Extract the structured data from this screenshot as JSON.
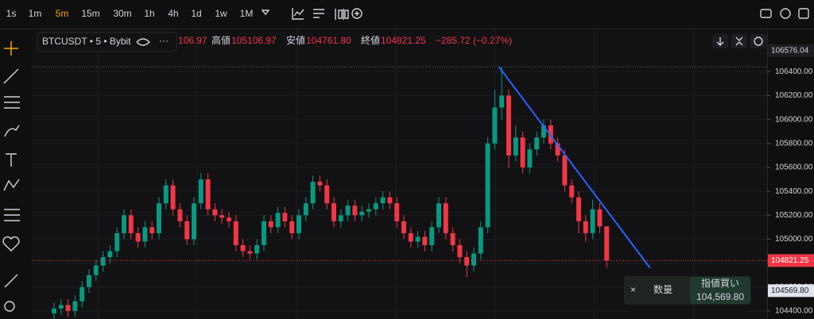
{
  "toolbar": {
    "intervals": [
      "1s",
      "1m",
      "5m",
      "15m",
      "30m",
      "1h",
      "4h",
      "1d",
      "1w",
      "1M"
    ],
    "active": 2
  },
  "legend": {
    "symbol": "BTCUSDT • 5 • Bybit",
    "open_partial": "106.97",
    "items": [
      {
        "label": "高値",
        "value": "105106.97"
      },
      {
        "label": "安値",
        "value": "104761.80"
      },
      {
        "label": "終値",
        "value": "104821.25"
      }
    ],
    "change": "−285.72 (−0.27%)"
  },
  "order_panel": {
    "close": "×",
    "quantity": "数量",
    "action": "指値買い",
    "price": "104,569.80"
  },
  "chart_data": {
    "type": "candlestick",
    "up_color": "#089981",
    "down_color": "#f23645",
    "grid": true,
    "open": [
      104380,
      104420,
      104450,
      104400,
      104480,
      104600,
      104700,
      104780,
      104850,
      104900,
      105050,
      105200,
      105050,
      104980,
      105100,
      105050,
      105300,
      105450,
      105250,
      105150,
      105000,
      105300,
      105500,
      105250,
      105200,
      105180,
      105150,
      104950,
      104900,
      104880,
      104950,
      105150,
      105100,
      105220,
      105150,
      105050,
      105200,
      105300,
      105480,
      105450,
      105300,
      105150,
      105200,
      105280,
      105200,
      105230,
      105250,
      105300,
      105350,
      105300,
      105150,
      105050,
      104980,
      105020,
      104950,
      105100,
      105300,
      105050,
      104950,
      104850,
      104780,
      104880,
      105100,
      105800,
      106100,
      106200,
      105700,
      105850,
      105600,
      105750,
      105850,
      105950,
      105800,
      105700,
      105450,
      105350,
      105150,
      105050,
      105250,
      105106.97
    ],
    "high": [
      104470,
      104500,
      104500,
      104530,
      104650,
      104750,
      104830,
      104900,
      104950,
      105100,
      105250,
      105250,
      105100,
      105150,
      105150,
      105350,
      105500,
      105500,
      105300,
      105200,
      105350,
      105550,
      105550,
      105300,
      105250,
      105230,
      105200,
      105000,
      104950,
      105000,
      105200,
      105200,
      105270,
      105270,
      105200,
      105250,
      105350,
      105530,
      105530,
      105500,
      105350,
      105250,
      105330,
      105330,
      105280,
      105300,
      105350,
      105400,
      105400,
      105350,
      105200,
      105100,
      105070,
      105070,
      105150,
      105350,
      105350,
      105100,
      105000,
      104900,
      104930,
      105150,
      105850,
      106250,
      106440,
      106250,
      105950,
      105900,
      105800,
      105900,
      106000,
      106000,
      105850,
      105750,
      105500,
      105400,
      105200,
      105330,
      105300,
      105106.97
    ],
    "low": [
      104330,
      104370,
      104350,
      104350,
      104430,
      104550,
      104650,
      104730,
      104800,
      104850,
      105000,
      105000,
      104930,
      104930,
      105000,
      105000,
      105250,
      105200,
      105100,
      104950,
      104950,
      105250,
      105200,
      105150,
      105130,
      105100,
      104900,
      104850,
      104830,
      104830,
      104900,
      105050,
      105050,
      105100,
      105000,
      105000,
      105150,
      105250,
      105400,
      105250,
      105100,
      105100,
      105150,
      105150,
      105150,
      105180,
      105200,
      105250,
      105250,
      105100,
      105000,
      104930,
      104930,
      104900,
      104900,
      105050,
      105000,
      104900,
      104800,
      104680,
      104730,
      104830,
      105050,
      105750,
      106000,
      105600,
      105650,
      105550,
      105550,
      105700,
      105800,
      105750,
      105650,
      105400,
      105300,
      105050,
      104980,
      105000,
      105050,
      104761.8
    ],
    "close": [
      104420,
      104450,
      104400,
      104480,
      104600,
      104700,
      104780,
      104850,
      104900,
      105050,
      105200,
      105050,
      104980,
      105100,
      105050,
      105300,
      105450,
      105250,
      105150,
      105000,
      105300,
      105500,
      105250,
      105200,
      105180,
      105150,
      104950,
      104900,
      104880,
      104950,
      105150,
      105100,
      105220,
      105150,
      105050,
      105200,
      105300,
      105480,
      105450,
      105300,
      105150,
      105200,
      105280,
      105200,
      105230,
      105250,
      105300,
      105350,
      105300,
      105150,
      105050,
      104980,
      105020,
      104950,
      105100,
      105300,
      105050,
      104950,
      104850,
      104780,
      104880,
      105100,
      105800,
      106100,
      106200,
      105700,
      105850,
      105600,
      105750,
      105850,
      105950,
      105800,
      105700,
      105450,
      105350,
      105150,
      105050,
      105250,
      105106.97,
      104821.25
    ],
    "ylim": [
      104333,
      106747
    ],
    "yticks": [
      {
        "value": 104400,
        "label": "104400.00"
      },
      {
        "value": 104600,
        "label": "104600.00"
      },
      {
        "value": 104800,
        "label": "104800.00"
      },
      {
        "value": 105000,
        "label": "105000.00"
      },
      {
        "value": 105200,
        "label": "105200.00"
      },
      {
        "value": 105400,
        "label": "105400.00"
      },
      {
        "value": 105600,
        "label": "105600.00"
      },
      {
        "value": 105800,
        "label": "105800.00"
      },
      {
        "value": 106000,
        "label": "106000.00"
      },
      {
        "value": 106200,
        "label": "106200.00"
      },
      {
        "value": 106400,
        "label": "106400.00"
      }
    ],
    "price_tags": [
      106576.04,
      104821.25,
      {
        "value": 104569.8,
        "label": "104569.80"
      }
    ],
    "trendline": {
      "x": [
        63.6,
        85.2
      ],
      "y": [
        106440,
        104760
      ],
      "color": "#2962ff"
    }
  }
}
